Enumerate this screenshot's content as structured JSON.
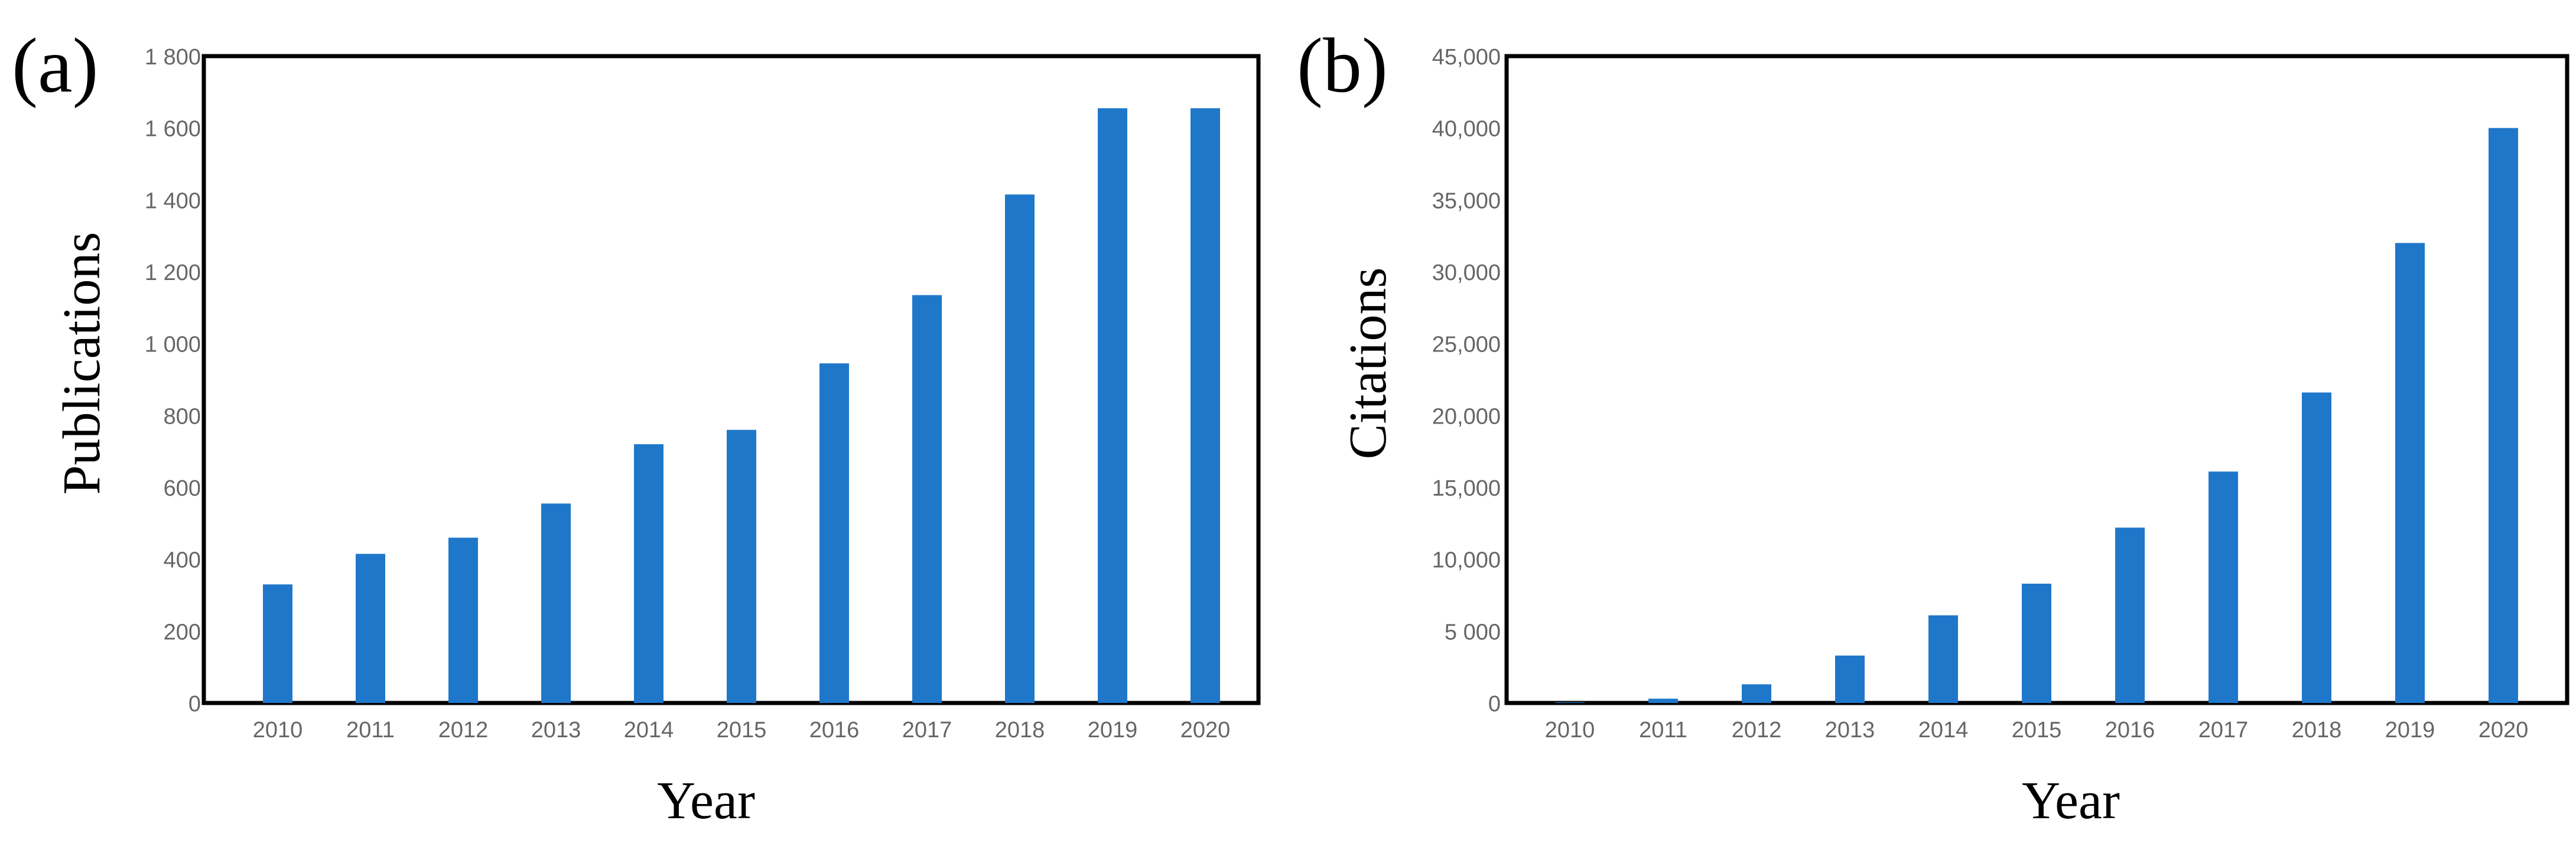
{
  "chart_data": [
    {
      "type": "bar",
      "panel_label": "(a)",
      "categories": [
        "2010",
        "2011",
        "2012",
        "2013",
        "2014",
        "2015",
        "2016",
        "2017",
        "2018",
        "2019",
        "2020"
      ],
      "values": [
        330,
        415,
        460,
        555,
        720,
        760,
        945,
        1135,
        1415,
        1655,
        1655
      ],
      "xlabel": "Year",
      "ylabel": "Publications",
      "ylim": [
        0,
        1800
      ],
      "yticks": [
        0,
        200,
        400,
        600,
        800,
        1000,
        1200,
        1400,
        1600,
        1800
      ],
      "ytick_labels": [
        "0",
        "200",
        "400",
        "600",
        "800",
        "1 000",
        "1 200",
        "1 400",
        "1 600",
        "1 800"
      ],
      "bar_color": "#1f77c9",
      "grid": false
    },
    {
      "type": "bar",
      "panel_label": "(b)",
      "categories": [
        "2010",
        "2011",
        "2012",
        "2013",
        "2014",
        "2015",
        "2016",
        "2017",
        "2018",
        "2019",
        "2020"
      ],
      "values": [
        50,
        300,
        1300,
        3300,
        6100,
        8300,
        12200,
        16100,
        21600,
        32000,
        40000
      ],
      "xlabel": "Year",
      "ylabel": "Citations",
      "ylim": [
        0,
        45000
      ],
      "yticks": [
        0,
        5000,
        10000,
        15000,
        20000,
        25000,
        30000,
        35000,
        40000,
        45000
      ],
      "ytick_labels": [
        "0",
        "5 000",
        "10,000",
        "15,000",
        "20,000",
        "25,000",
        "30,000",
        "35,000",
        "40,000",
        "45,000"
      ],
      "bar_color": "#1f77c9",
      "grid": false
    }
  ]
}
